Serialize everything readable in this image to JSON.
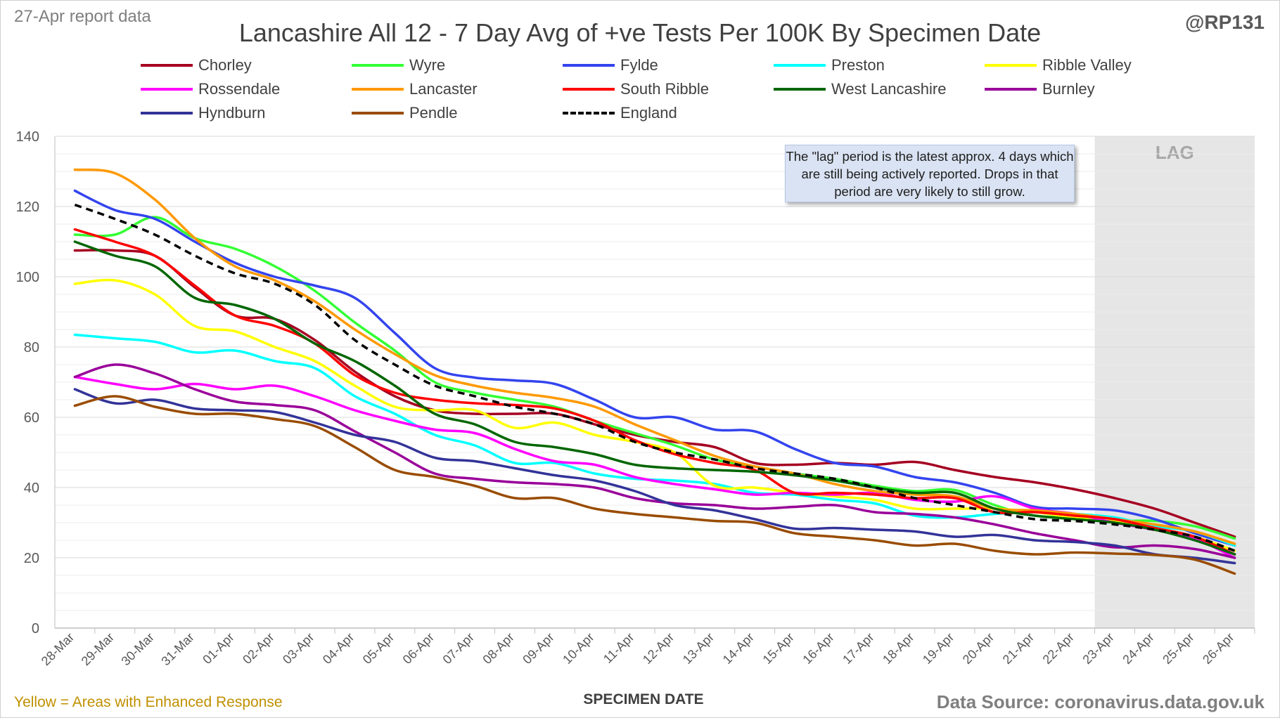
{
  "header": {
    "report_date_note": "27-Apr report data",
    "handle": "@RP131"
  },
  "footer": {
    "enhanced_note": "Yellow = Areas with Enhanced Response",
    "source": "Data Source: coronavirus.data.gov.uk"
  },
  "annotation": {
    "lag_box_text": "The \"lag\" period is the latest approx. 4 days which are still being actively reported. Drops in that period are very likely to still grow.",
    "lag_label": "LAG",
    "lag_start_index": 26,
    "lag_end_index": 29
  },
  "colors": {
    "lag_band": "#e6e6e6",
    "grid": "#d9d9d9",
    "axis": "#bfbfbf",
    "enhanced_note": "#bf9000"
  },
  "chart_data": {
    "type": "line",
    "title": "Lancashire All 12 - 7 Day Avg of +ve Tests Per 100K By Specimen Date",
    "xlabel": "SPECIMEN DATE",
    "ylabel": "",
    "ylim": [
      0,
      140
    ],
    "yticks": [
      0,
      20,
      40,
      60,
      80,
      100,
      120,
      140
    ],
    "grid": true,
    "legend_position": "top",
    "categories": [
      "28-Mar",
      "29-Mar",
      "30-Mar",
      "31-Mar",
      "01-Apr",
      "02-Apr",
      "03-Apr",
      "04-Apr",
      "05-Apr",
      "06-Apr",
      "07-Apr",
      "08-Apr",
      "09-Apr",
      "10-Apr",
      "11-Apr",
      "12-Apr",
      "13-Apr",
      "14-Apr",
      "15-Apr",
      "16-Apr",
      "17-Apr",
      "18-Apr",
      "19-Apr",
      "20-Apr",
      "21-Apr",
      "22-Apr",
      "23-Apr",
      "24-Apr",
      "25-Apr",
      "26-Apr"
    ],
    "series": [
      {
        "name": "Chorley",
        "color": "#a50021",
        "dash": false,
        "values": [
          107.5,
          107.5,
          106,
          97,
          89,
          88,
          82,
          73,
          66,
          62,
          61,
          61,
          61,
          58,
          55,
          53,
          51.5,
          47,
          46.5,
          47,
          46.5,
          47.3,
          45,
          43,
          41.5,
          39.5,
          37,
          34,
          30,
          26
        ]
      },
      {
        "name": "Wyre",
        "color": "#33ff33",
        "dash": false,
        "values": [
          112,
          112,
          117,
          111,
          108,
          103,
          96,
          87,
          79,
          70,
          67,
          65,
          63,
          59,
          55.5,
          52,
          48,
          46,
          44,
          42.5,
          40.5,
          39,
          39.3,
          35,
          32,
          31.5,
          30.5,
          30.5,
          29,
          25.5
        ]
      },
      {
        "name": "Fylde",
        "color": "#3344ee",
        "dash": false,
        "values": [
          124.5,
          119,
          116.5,
          110,
          104,
          100,
          97.5,
          94,
          84,
          74,
          71.3,
          70.5,
          69.5,
          65,
          60,
          60,
          56.5,
          56,
          51,
          47,
          46,
          43,
          41.5,
          38.5,
          34.5,
          34,
          33.5,
          31,
          27,
          23.5
        ]
      },
      {
        "name": "Preston",
        "color": "#00ffff",
        "dash": false,
        "values": [
          83.5,
          82.5,
          81.5,
          78.5,
          79,
          76,
          74,
          66,
          61,
          55,
          52,
          47,
          47,
          44,
          42.5,
          42,
          41,
          38.5,
          38,
          36.5,
          35.5,
          32,
          31.5,
          32.5,
          33,
          32.5,
          31.5,
          29,
          27.5,
          23.5
        ]
      },
      {
        "name": "Ribble Valley",
        "color": "#ffff00",
        "dash": false,
        "values": [
          98,
          99,
          95,
          86,
          84.5,
          80,
          76,
          69,
          63,
          62,
          62,
          57,
          58.5,
          55,
          53,
          50,
          40.5,
          40,
          38.5,
          37.5,
          36.5,
          34,
          34,
          34,
          33,
          31.5,
          30.5,
          28,
          26,
          22
        ]
      },
      {
        "name": "Rossendale",
        "color": "#ff00ff",
        "dash": false,
        "values": [
          71.5,
          69.5,
          68,
          69.5,
          68,
          69,
          66,
          62,
          59,
          56.5,
          55.5,
          51,
          47.5,
          46.5,
          43,
          41,
          39.5,
          38,
          38.5,
          38,
          38.5,
          36.5,
          36,
          37.5,
          34,
          32.5,
          30,
          28,
          25.5,
          20
        ]
      },
      {
        "name": "Lancaster",
        "color": "#ff9900",
        "dash": false,
        "values": [
          130.5,
          129.5,
          122,
          111,
          103,
          99,
          93,
          85,
          78,
          72,
          69,
          67,
          65.5,
          63,
          58,
          53.5,
          49,
          46,
          44,
          41,
          39,
          38,
          37.5,
          34,
          33.5,
          32.5,
          31,
          29.5,
          27.5,
          24
        ]
      },
      {
        "name": "South Ribble",
        "color": "#ff0000",
        "dash": false,
        "values": [
          113.5,
          110,
          106,
          97.5,
          89,
          86,
          81,
          72,
          67,
          65,
          64,
          63.5,
          62.5,
          59,
          53.5,
          49.5,
          47,
          45,
          38.5,
          38.5,
          38,
          37,
          37,
          33,
          33,
          32,
          31,
          28.5,
          26,
          21
        ]
      },
      {
        "name": "West Lancashire",
        "color": "#006600",
        "dash": false,
        "values": [
          110,
          106,
          103,
          94,
          92,
          88,
          81,
          76,
          69,
          61,
          58,
          53,
          51.5,
          49.5,
          46.5,
          45.5,
          45,
          44.5,
          43.5,
          42,
          40,
          38.5,
          38.5,
          34,
          32,
          31,
          30,
          28,
          25,
          21
        ]
      },
      {
        "name": "Burnley",
        "color": "#990099",
        "dash": false,
        "values": [
          71.5,
          75,
          72.5,
          68,
          64.5,
          63.5,
          62,
          56,
          50,
          44,
          42.5,
          41.5,
          41,
          40,
          37,
          35.5,
          35,
          34,
          34.5,
          35,
          33,
          32.5,
          31.5,
          29.5,
          27,
          25,
          23,
          23.5,
          22.5,
          20
        ]
      },
      {
        "name": "Hyndburn",
        "color": "#333399",
        "dash": false,
        "values": [
          68,
          64,
          65,
          62.5,
          62,
          61.5,
          58.5,
          55,
          53,
          48.5,
          47.5,
          45.5,
          43.5,
          42,
          39,
          35,
          33.5,
          31,
          28.3,
          28.5,
          28,
          27.5,
          26,
          26.5,
          25,
          24.5,
          23.5,
          21,
          20,
          18.5
        ]
      },
      {
        "name": "Pendle",
        "color": "#994c00",
        "dash": false,
        "values": [
          63.3,
          66,
          63,
          61,
          61,
          59.5,
          57.5,
          51.5,
          45,
          43,
          40.5,
          37,
          37,
          34,
          32.5,
          31.5,
          30.5,
          30,
          27,
          26,
          25,
          23.5,
          24,
          22,
          21,
          21.5,
          21.2,
          20.8,
          19.5,
          15.5
        ]
      },
      {
        "name": "England",
        "color": "#000000",
        "dash": true,
        "values": [
          120.5,
          116.5,
          112,
          106,
          101,
          98,
          92,
          82,
          75,
          69,
          66,
          63,
          61,
          58,
          53,
          50,
          48,
          45.5,
          44,
          42.5,
          40,
          37,
          35,
          33,
          31,
          30.5,
          29.5,
          28,
          26,
          22
        ]
      }
    ]
  }
}
